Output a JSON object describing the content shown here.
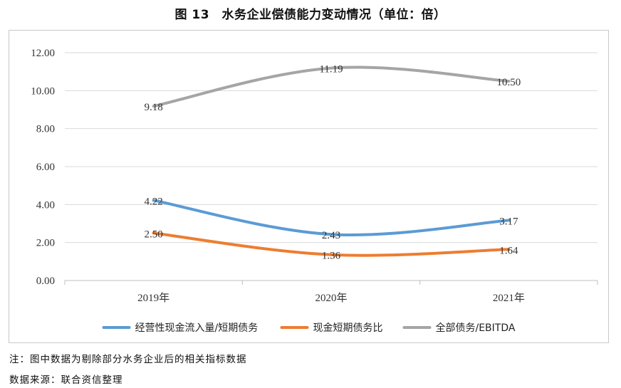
{
  "title": "图 13　水务企业偿债能力变动情况（单位：倍）",
  "footnote": "注：图中数据为剔除部分水务企业后的相关指标数据",
  "source": "数据来源：联合资信整理",
  "chart_data": {
    "type": "line",
    "categories": [
      "2019年",
      "2020年",
      "2021年"
    ],
    "ylim": [
      0,
      12
    ],
    "yticks": [
      "0.00",
      "2.00",
      "4.00",
      "6.00",
      "8.00",
      "10.00",
      "12.00"
    ],
    "grid": true,
    "legend_position": "bottom",
    "series": [
      {
        "name": "经营性现金流入量/短期债务",
        "values": [
          4.22,
          2.43,
          3.17
        ],
        "labels": [
          "4.22",
          "2.43",
          "3.17"
        ],
        "color": "#5B9BD5"
      },
      {
        "name": "现金短期债务比",
        "values": [
          2.5,
          1.36,
          1.64
        ],
        "labels": [
          "2.50",
          "1.36",
          "1.64"
        ],
        "color": "#ED7D31"
      },
      {
        "name": "全部债务/EBITDA",
        "values": [
          9.18,
          11.19,
          10.5
        ],
        "labels": [
          "9.18",
          "11.19",
          "10.50"
        ],
        "color": "#A5A5A5"
      }
    ]
  }
}
